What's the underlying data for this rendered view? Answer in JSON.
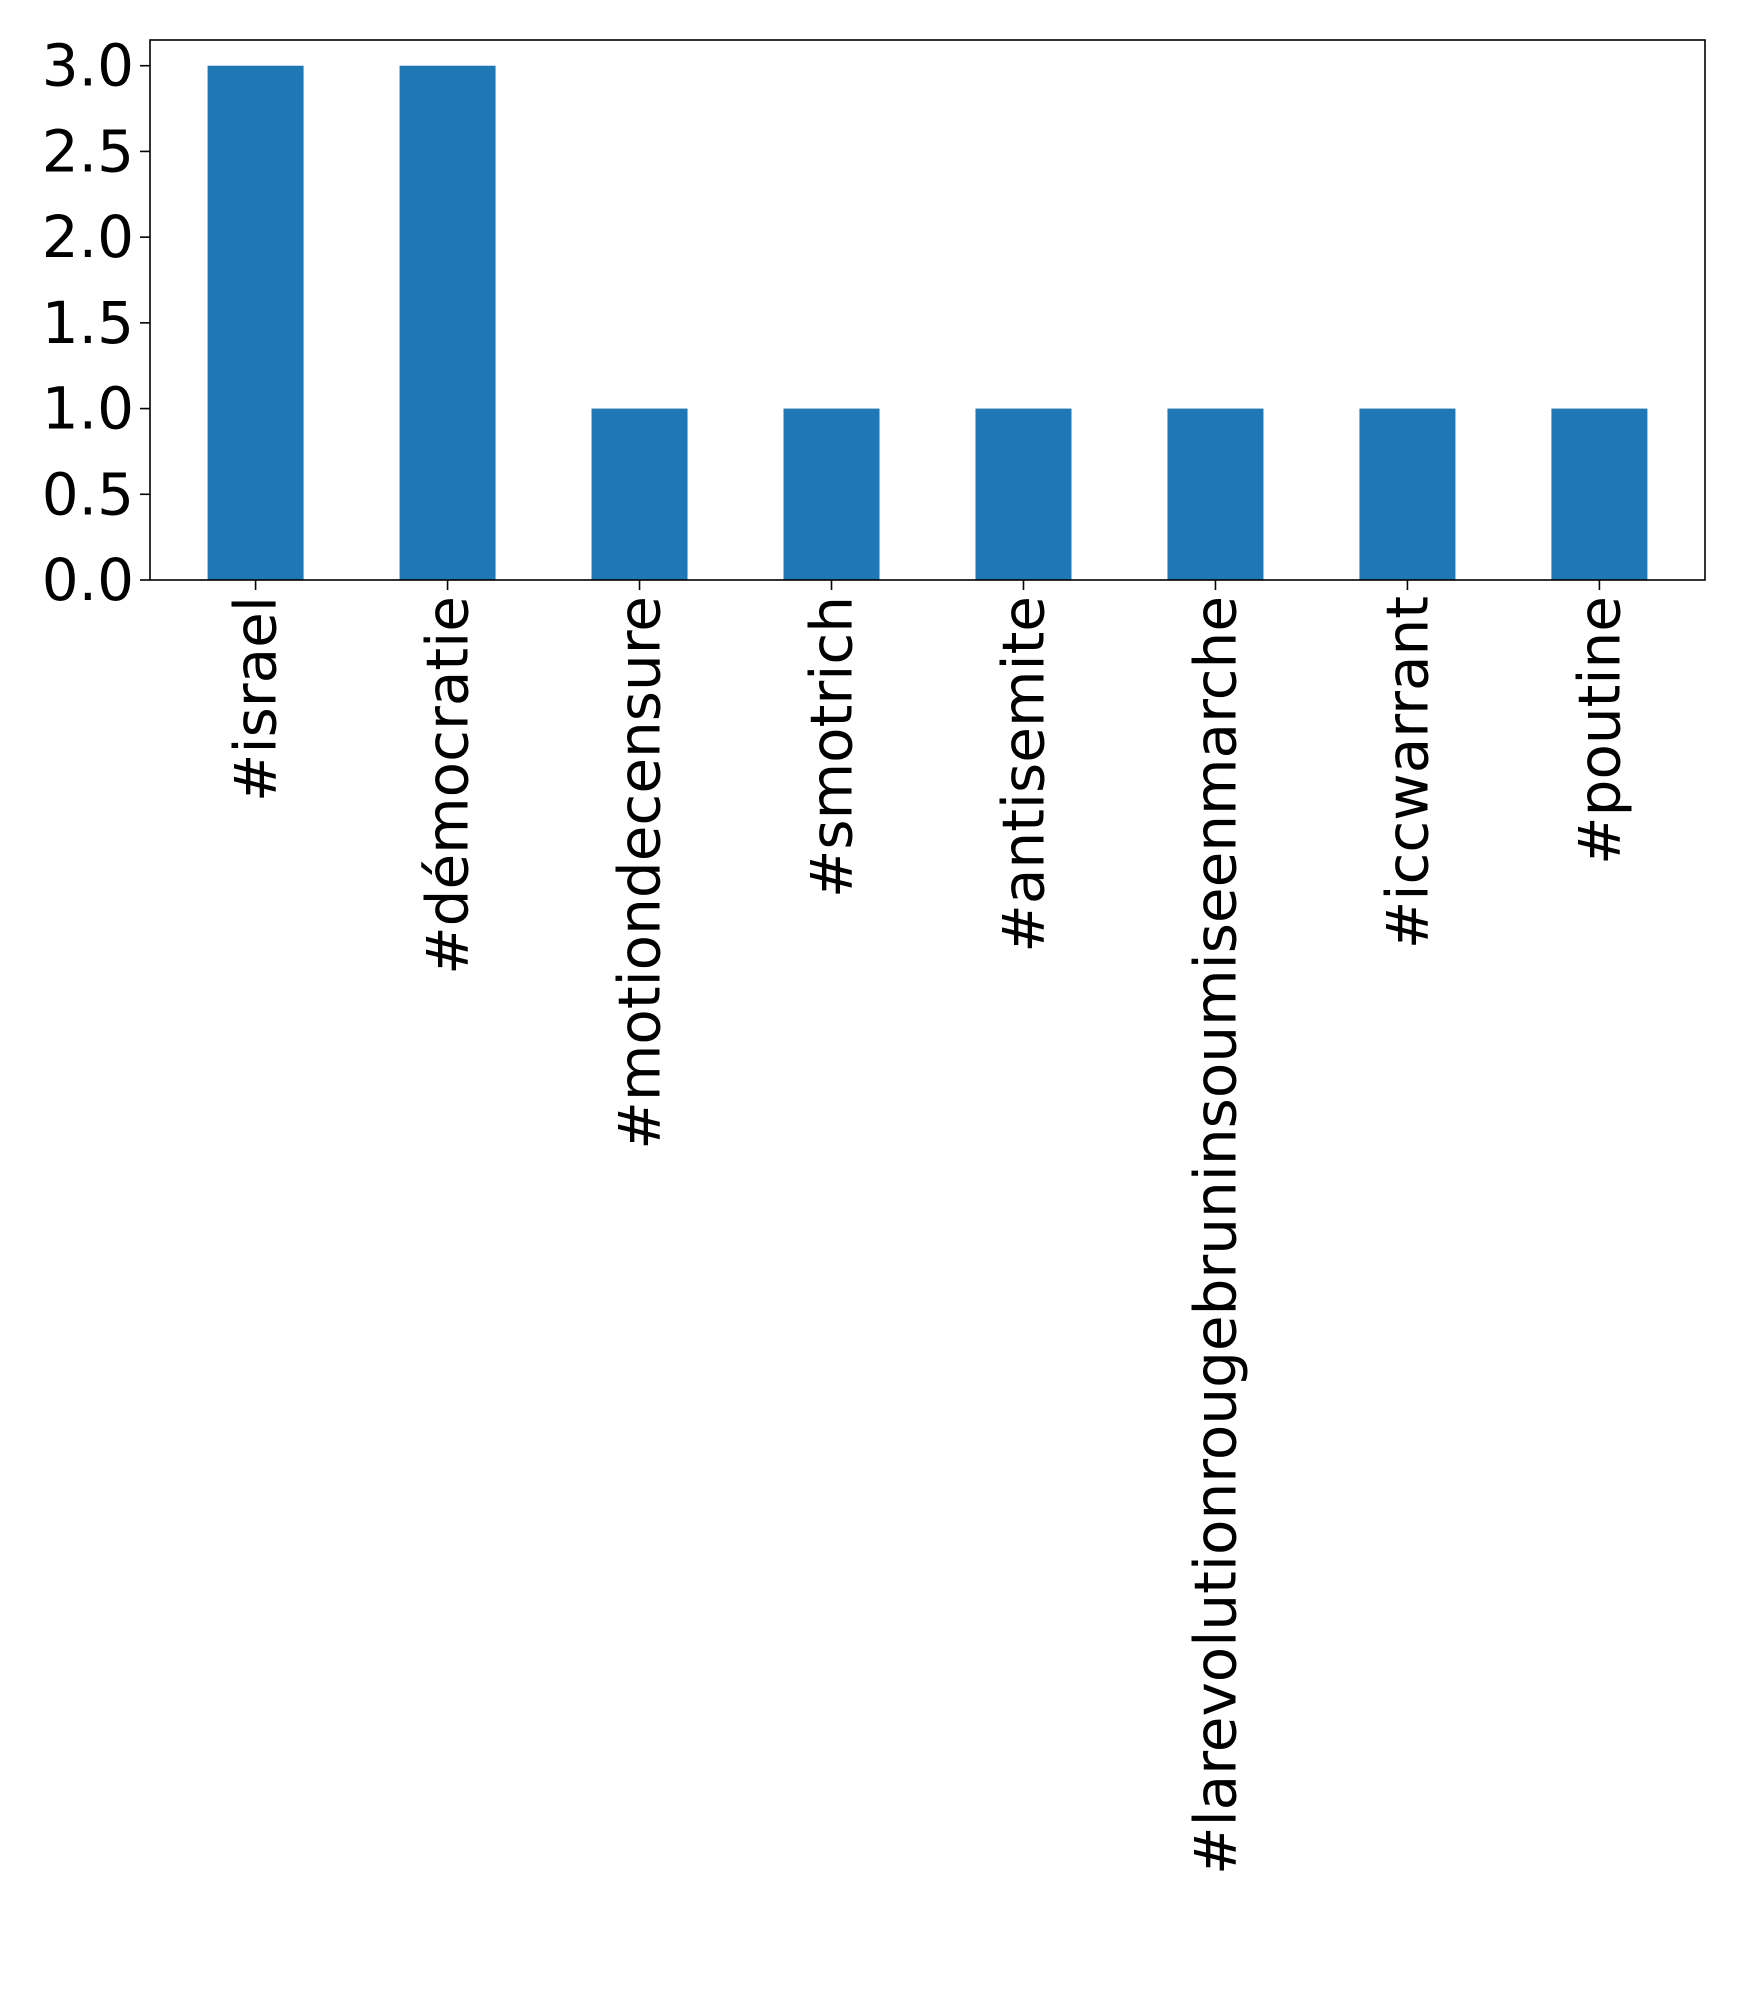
{
  "chart_data": {
    "type": "bar",
    "title": "",
    "xlabel": "",
    "ylabel": "",
    "categories": [
      "#israel",
      "#démocratie",
      "#motiondecensure",
      "#smotrich",
      "#antisemite",
      "#larevolutionrougebruninsoumiseenmarche",
      "#iccwarrant",
      "#poutine"
    ],
    "values": [
      3,
      3,
      1,
      1,
      1,
      1,
      1,
      1
    ],
    "ylim": [
      0,
      3.15
    ],
    "yticks": [
      "0.0",
      "0.5",
      "1.0",
      "1.5",
      "2.0",
      "2.5",
      "3.0"
    ],
    "grid": false,
    "legend": "none",
    "bar_color": "#1f77b4",
    "x_tick_rotation": 90
  }
}
